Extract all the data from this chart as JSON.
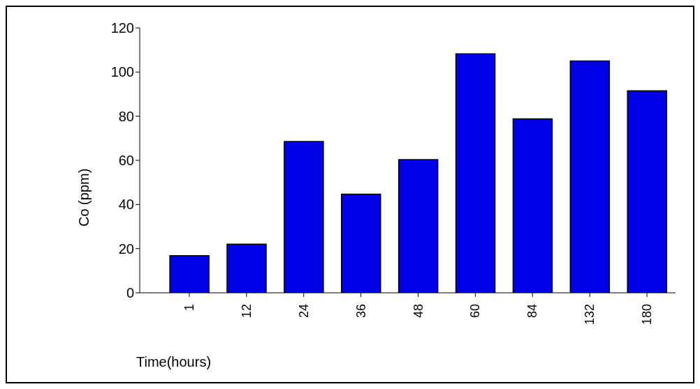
{
  "chart_data": {
    "type": "bar",
    "xlabel": "Time(hours)",
    "ylabel": "Co (ppm)",
    "categories": [
      "1",
      "12",
      "24",
      "36",
      "48",
      "60",
      "84",
      "132",
      "180"
    ],
    "values": [
      16.8,
      22,
      68.5,
      44.7,
      60.3,
      108.2,
      78.8,
      105,
      91.5
    ],
    "color": "#0000e6",
    "ylim": [
      0,
      120
    ],
    "yticks": [
      0,
      20,
      40,
      60,
      80,
      100,
      120
    ],
    "grid": false
  }
}
